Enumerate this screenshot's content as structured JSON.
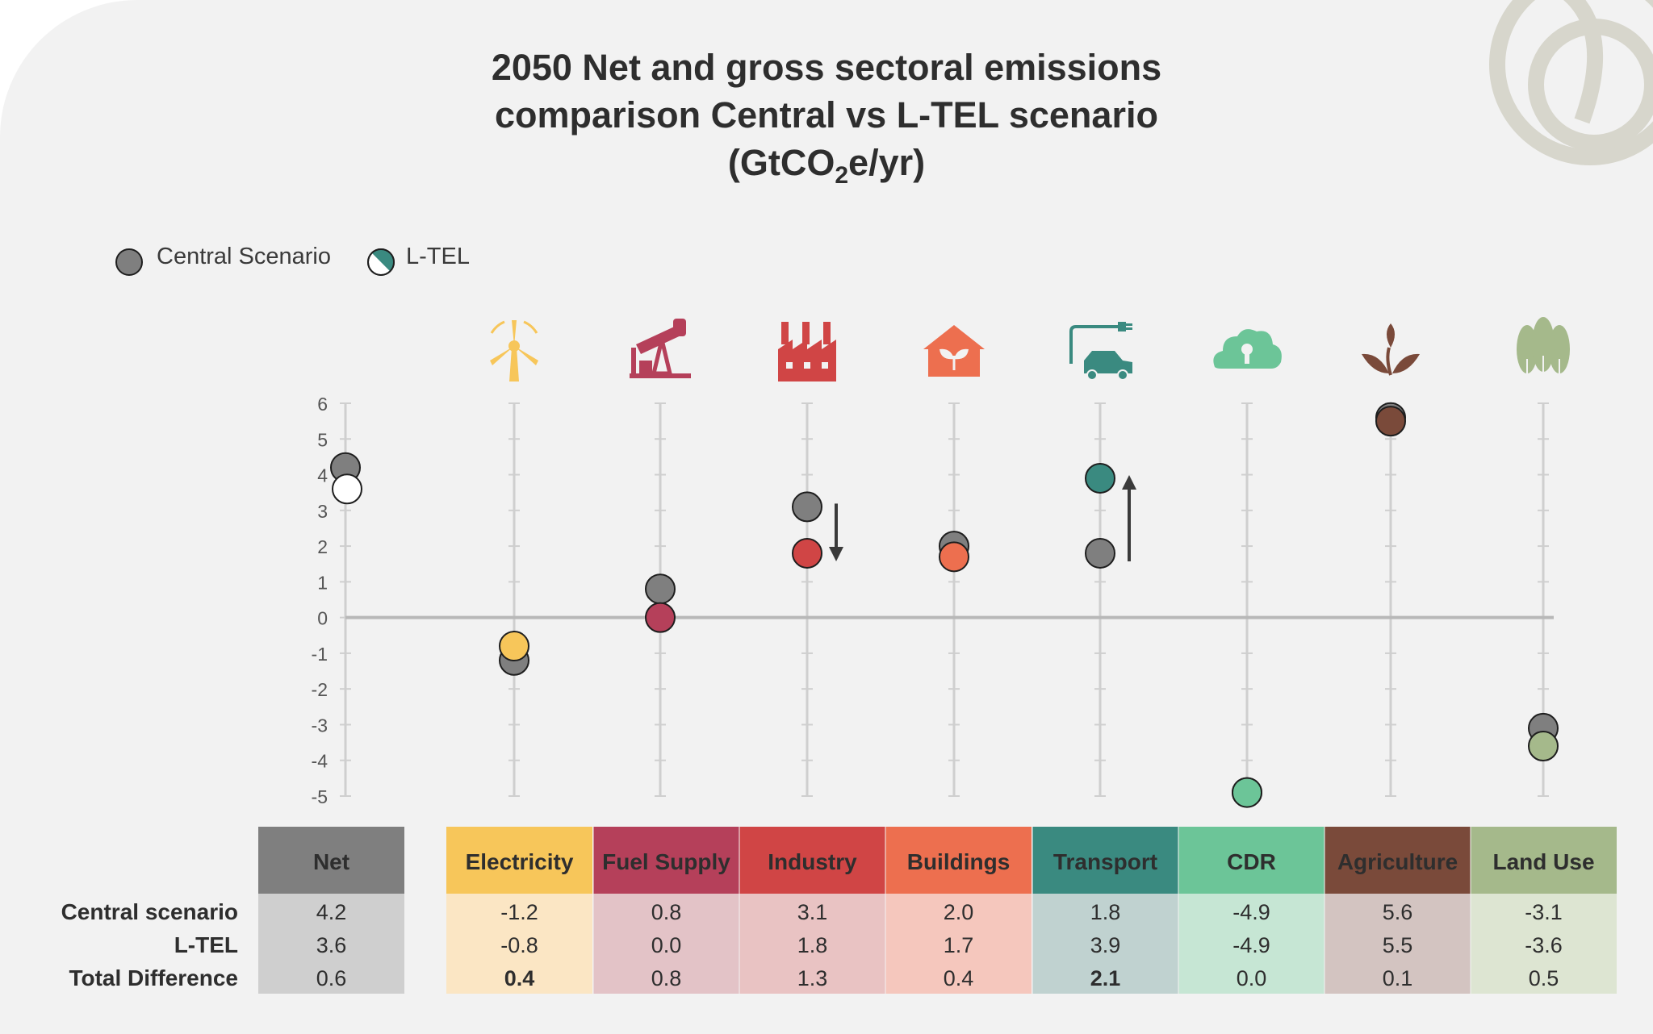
{
  "title": {
    "line1": "2050 Net and gross sectoral emissions",
    "line2": "comparison Central vs L-TEL scenario",
    "line3_prefix": "(GtCO",
    "line3_sub": "2",
    "line3_suffix": "e/yr)"
  },
  "legend": {
    "central": "Central Scenario",
    "ltel": "L-TEL"
  },
  "colors": {
    "background": "#f2f2f2",
    "central_marker": "#7f7f7f",
    "ltel_marker": "#3a8a80"
  },
  "table": {
    "row_labels": [
      "Central scenario",
      "L-TEL",
      "Total Difference"
    ]
  },
  "chart_data": {
    "type": "scatter",
    "ylim": [
      -5,
      6
    ],
    "yticks": [
      "6",
      "5",
      "4",
      "3",
      "2",
      "1",
      "0",
      "-1",
      "-2",
      "-3",
      "-4",
      "-5"
    ],
    "series": [
      {
        "name": "Central Scenario"
      },
      {
        "name": "L-TEL"
      }
    ],
    "sectors": [
      {
        "name": "Net",
        "icon": "none",
        "header_color": "#7f7f7f",
        "cell_color": "#cfcfcf",
        "ltel_color": "#ffffff",
        "central": 4.2,
        "ltel": 3.6,
        "central_text": "4.2",
        "ltel_text": "3.6",
        "diff_text": "0.6",
        "diff_bold": false,
        "arrow": "none"
      },
      {
        "name": "Electricity",
        "icon": "wind-turbine-icon",
        "header_color": "#f7c65a",
        "cell_color": "#fbe6c4",
        "ltel_color": "#f7c65a",
        "central": -1.2,
        "ltel": -0.8,
        "central_text": "-1.2",
        "ltel_text": "-0.8",
        "diff_text": "0.4",
        "diff_bold": true,
        "arrow": "none"
      },
      {
        "name": "Fuel Supply",
        "icon": "oil-pump-icon",
        "header_color": "#b5405a",
        "cell_color": "#e3c3c7",
        "ltel_color": "#b5405a",
        "central": 0.8,
        "ltel": 0.0,
        "central_text": "0.8",
        "ltel_text": "0.0",
        "diff_text": "0.8",
        "diff_bold": false,
        "arrow": "none"
      },
      {
        "name": "Industry",
        "icon": "factory-icon",
        "header_color": "#d04545",
        "cell_color": "#e9c3c3",
        "ltel_color": "#d04545",
        "central": 3.1,
        "ltel": 1.8,
        "central_text": "3.1",
        "ltel_text": "1.8",
        "diff_text": "1.3",
        "diff_bold": false,
        "arrow": "down"
      },
      {
        "name": "Buildings",
        "icon": "house-leaf-icon",
        "header_color": "#ed6f4f",
        "cell_color": "#f5c7bd",
        "ltel_color": "#ed6f4f",
        "central": 2.0,
        "ltel": 1.7,
        "central_text": "2.0",
        "ltel_text": "1.7",
        "diff_text": "0.4",
        "diff_bold": false,
        "arrow": "none"
      },
      {
        "name": "Transport",
        "icon": "electric-car-icon",
        "header_color": "#3a8a80",
        "cell_color": "#c0d2d0",
        "ltel_color": "#3a8a80",
        "central": 1.8,
        "ltel": 3.9,
        "central_text": "1.8",
        "ltel_text": "3.9",
        "diff_text": "2.1",
        "diff_bold": true,
        "arrow": "up"
      },
      {
        "name": "CDR",
        "icon": "cloud-lock-icon",
        "header_color": "#6cc598",
        "cell_color": "#c6e6d4",
        "ltel_color": "#6cc598",
        "central": -4.9,
        "ltel": -4.9,
        "central_text": "-4.9",
        "ltel_text": "-4.9",
        "diff_text": "0.0",
        "diff_bold": false,
        "arrow": "none"
      },
      {
        "name": "Agriculture",
        "icon": "plant-icon",
        "header_color": "#7a4a3a",
        "cell_color": "#d3c4c1",
        "ltel_color": "#7a4a3a",
        "central": 5.6,
        "ltel": 5.5,
        "central_text": "5.6",
        "ltel_text": "5.5",
        "diff_text": "0.1",
        "diff_bold": false,
        "arrow": "none"
      },
      {
        "name": "Land Use",
        "icon": "trees-icon",
        "header_color": "#a5b98b",
        "cell_color": "#dde5d2",
        "ltel_color": "#a5b98b",
        "central": -3.1,
        "ltel": -3.6,
        "central_text": "-3.1",
        "ltel_text": "-3.6",
        "diff_text": "0.5",
        "diff_bold": false,
        "arrow": "none"
      }
    ]
  }
}
